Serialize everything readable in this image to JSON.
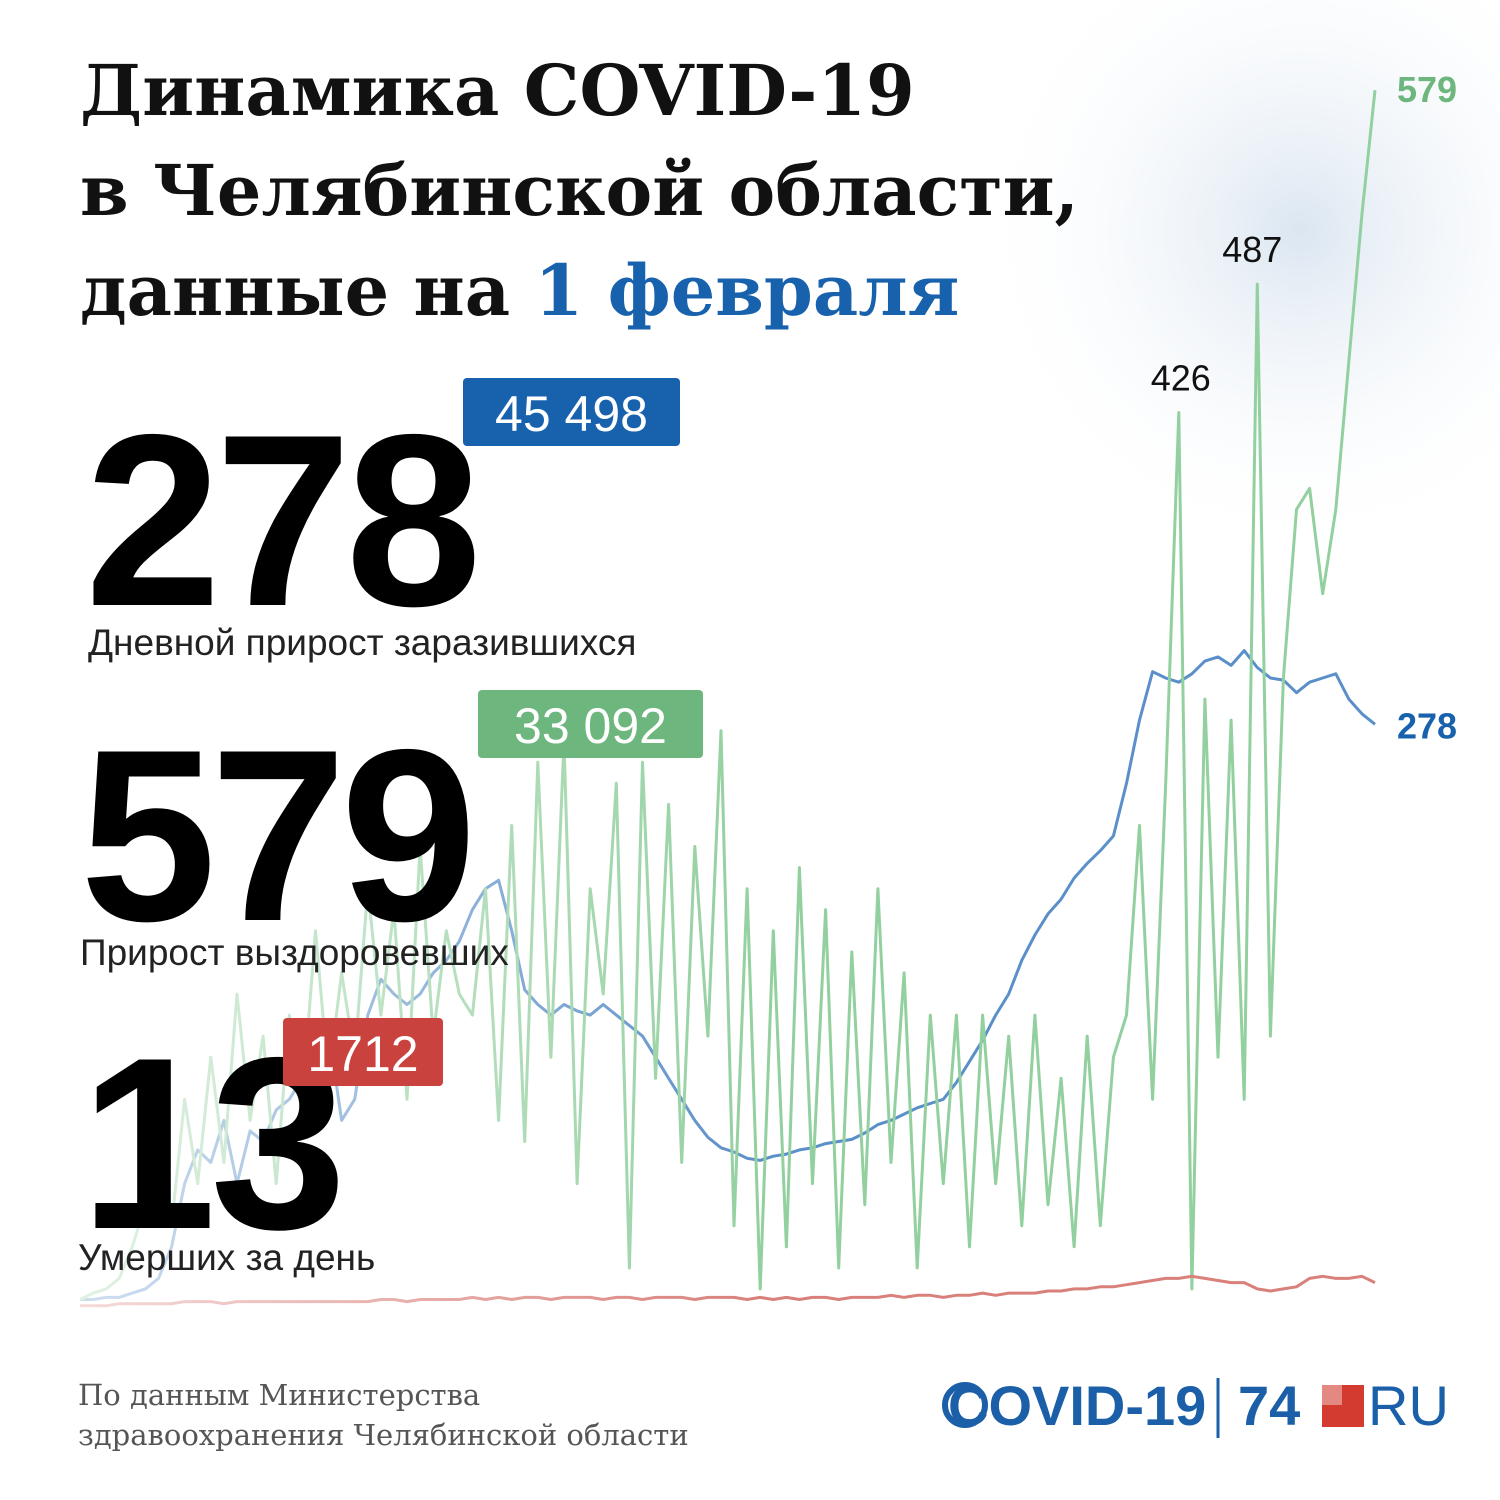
{
  "header": {
    "title_lines": [
      "Динамика COVID-19",
      "в Челябинской области,"
    ],
    "title_prefix": "данные на ",
    "title_date": "1 февраля"
  },
  "stats": [
    {
      "value": 278,
      "total": "45 498",
      "label": "Дневной прирост заразившихся",
      "color": "#1862ad"
    },
    {
      "value": 579,
      "total": "33 092",
      "label": "Прирост выздоровевших",
      "color": "#6db77e"
    },
    {
      "value": 13,
      "total": "1712",
      "label": "Умерших за день",
      "color": "#c9423e"
    }
  ],
  "chart_data": {
    "type": "line",
    "ylim": [
      0,
      600
    ],
    "series": [
      {
        "color": "#5b8fc9",
        "values": [
          5,
          5,
          6,
          6,
          8,
          10,
          15,
          30,
          60,
          76,
          70,
          90,
          60,
          85,
          80,
          95,
          100,
          110,
          120,
          133,
          90,
          100,
          140,
          157,
          150,
          145,
          150,
          160,
          166,
          175,
          190,
          200,
          204,
          180,
          152,
          145,
          140,
          145,
          142,
          140,
          145,
          140,
          135,
          130,
          120,
          110,
          100,
          90,
          82,
          77,
          75,
          72,
          71,
          73,
          74,
          76,
          77,
          79,
          80,
          81,
          84,
          88,
          90,
          93,
          96,
          98,
          100,
          108,
          118,
          128,
          140,
          150,
          166,
          178,
          188,
          195,
          205,
          212,
          218,
          225,
          250,
          280,
          303,
          300,
          298,
          302,
          308,
          310,
          306,
          313,
          305,
          300,
          299,
          293,
          298,
          300,
          302,
          290,
          283,
          278
        ]
      },
      {
        "color": "#93d09f",
        "values": [
          5,
          8,
          10,
          15,
          30,
          50,
          80,
          40,
          100,
          60,
          120,
          70,
          150,
          90,
          130,
          60,
          140,
          100,
          180,
          110,
          160,
          120,
          200,
          140,
          190,
          100,
          220,
          130,
          180,
          150,
          140,
          200,
          90,
          230,
          80,
          260,
          120,
          270,
          60,
          200,
          150,
          250,
          20,
          260,
          110,
          240,
          70,
          220,
          130,
          275,
          40,
          200,
          10,
          180,
          30,
          210,
          60,
          190,
          20,
          170,
          50,
          200,
          70,
          160,
          20,
          140,
          60,
          140,
          30,
          140,
          60,
          130,
          40,
          140,
          50,
          110,
          30,
          130,
          40,
          120,
          140,
          230,
          100,
          250,
          426,
          10,
          290,
          120,
          280,
          100,
          487,
          130,
          300,
          380,
          390,
          340,
          380,
          450,
          520,
          579
        ]
      },
      {
        "color": "#d9807a",
        "values": [
          2,
          2,
          2,
          3,
          3,
          3,
          3,
          3,
          4,
          4,
          4,
          3,
          4,
          4,
          4,
          4,
          4,
          4,
          4,
          4,
          4,
          4,
          4,
          5,
          5,
          4,
          5,
          5,
          5,
          5,
          6,
          5,
          6,
          5,
          6,
          6,
          5,
          6,
          6,
          6,
          5,
          6,
          6,
          5,
          6,
          6,
          6,
          5,
          6,
          6,
          6,
          5,
          6,
          5,
          6,
          5,
          6,
          6,
          5,
          6,
          6,
          6,
          7,
          6,
          7,
          7,
          6,
          7,
          7,
          8,
          7,
          8,
          8,
          8,
          9,
          9,
          10,
          10,
          11,
          11,
          12,
          13,
          14,
          15,
          15,
          16,
          15,
          14,
          13,
          13,
          10,
          9,
          10,
          11,
          15,
          16,
          15,
          15,
          16,
          13
        ]
      }
    ]
  },
  "source": [
    "По данным Министерства",
    "здравоохранения Челябинской области"
  ],
  "logo": {
    "covid": "COVID-19",
    "num": "74",
    "ru": "RU"
  }
}
